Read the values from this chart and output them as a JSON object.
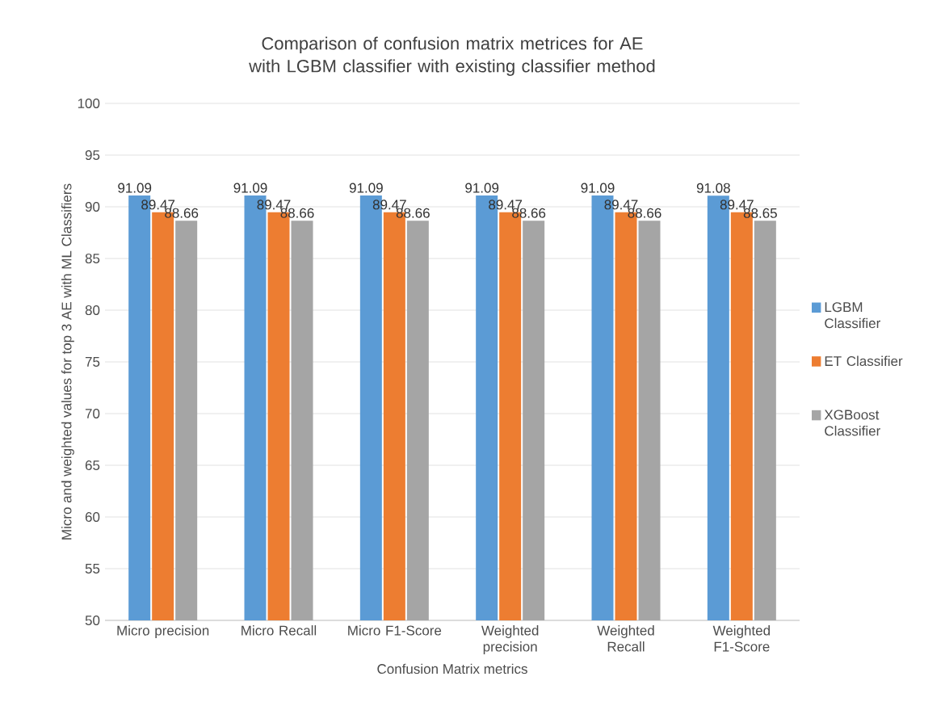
{
  "chart_data": {
    "type": "bar",
    "title": "Comparison of confusion matrix metrices for AE with LGBM classifier with existing classifier method",
    "xlabel": "Confusion Matrix metrics",
    "ylabel": "Micro and weighted  values for top 3 AE with ML Classifiers",
    "categories": [
      "Micro precision",
      "Micro Recall",
      "Micro F1-Score",
      "Weighted precision",
      "Weighted Recall",
      "Weighted F1-Score"
    ],
    "series": [
      {
        "name": "LGBM Classifier",
        "color": "#5b9bd5",
        "values": [
          91.09,
          91.09,
          91.09,
          91.09,
          91.09,
          91.08
        ],
        "value_labels": [
          "91.09",
          "91.09",
          "91.09",
          "91.09",
          "91.09",
          "91.08"
        ]
      },
      {
        "name": "ET Classifier",
        "color": "#ed7d31",
        "values": [
          89.47,
          89.47,
          89.47,
          89.47,
          89.47,
          89.47
        ],
        "value_labels": [
          "89.47",
          "89.47",
          "89.47",
          "89.47",
          "89.47",
          "89.47"
        ]
      },
      {
        "name": "XGBoost Classifier",
        "color": "#a5a5a5",
        "values": [
          88.66,
          88.66,
          88.66,
          88.66,
          88.66,
          88.65
        ],
        "value_labels": [
          "88.66",
          "88.66",
          "88.66",
          "88.66",
          "88.66",
          "88.65"
        ]
      }
    ],
    "ylim": [
      50,
      100
    ],
    "yticks": [
      50,
      55,
      60,
      65,
      70,
      75,
      80,
      85,
      90,
      95,
      100
    ],
    "grid": "y",
    "legend": "right"
  }
}
